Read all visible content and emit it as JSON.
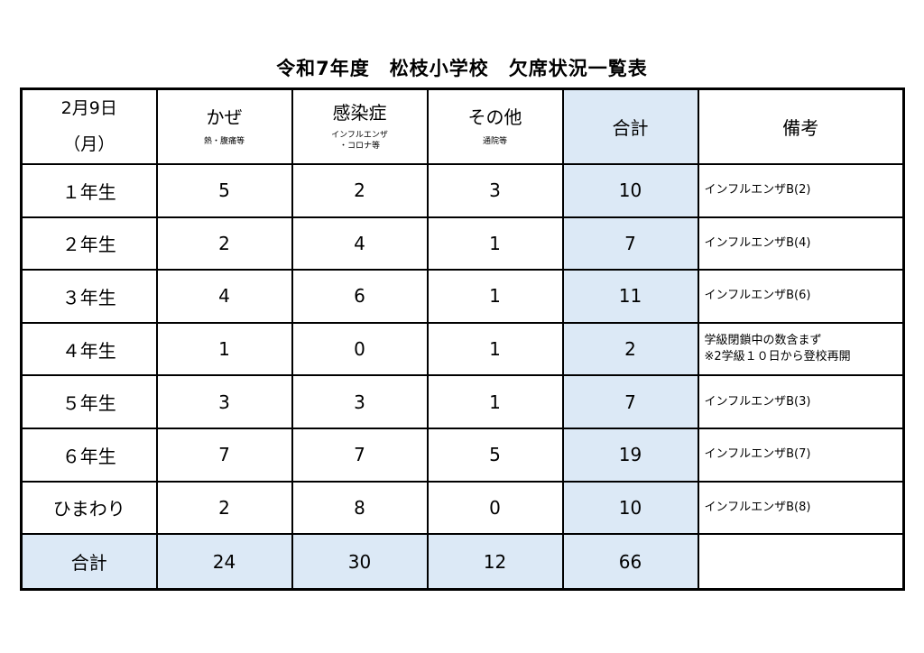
{
  "title": "令和7年度　松枝小学校　欠席状況一覧表",
  "header": {
    "date_line1": "2月9日",
    "date_line2": "（月）",
    "cold": "かぜ",
    "cold_sub": "熱・腹痛等",
    "infection": "感染症",
    "infection_sub_line1": "インフルエンザ",
    "infection_sub_line2": "・コロナ等",
    "other": "その他",
    "other_sub": "通院等",
    "total": "合計",
    "notes": "備考"
  },
  "rows": [
    {
      "grade": "１年生",
      "cold": "5",
      "infection": "2",
      "other": "3",
      "total": "10",
      "note_line1": "インフルエンザB(2)",
      "note_line2": ""
    },
    {
      "grade": "２年生",
      "cold": "2",
      "infection": "4",
      "other": "1",
      "total": "7",
      "note_line1": "インフルエンザB(4)",
      "note_line2": ""
    },
    {
      "grade": "３年生",
      "cold": "4",
      "infection": "6",
      "other": "1",
      "total": "11",
      "note_line1": "インフルエンザB(6)",
      "note_line2": ""
    },
    {
      "grade": "４年生",
      "cold": "1",
      "infection": "0",
      "other": "1",
      "total": "2",
      "note_line1": "学級閉鎖中の数含まず",
      "note_line2": "※2学級１０日から登校再開"
    },
    {
      "grade": "５年生",
      "cold": "3",
      "infection": "3",
      "other": "1",
      "total": "7",
      "note_line1": "インフルエンザB(3)",
      "note_line2": ""
    },
    {
      "grade": "６年生",
      "cold": "7",
      "infection": "7",
      "other": "5",
      "total": "19",
      "note_line1": "インフルエンザB(7)",
      "note_line2": ""
    },
    {
      "grade": "ひまわり",
      "cold": "2",
      "infection": "8",
      "other": "0",
      "total": "10",
      "note_line1": "インフルエンザB(8)",
      "note_line2": ""
    }
  ],
  "totals": {
    "label": "合計",
    "cold": "24",
    "infection": "30",
    "other": "12",
    "total": "66",
    "note": ""
  },
  "colors": {
    "total_column_bg": "#dce9f6",
    "border": "#000000"
  }
}
